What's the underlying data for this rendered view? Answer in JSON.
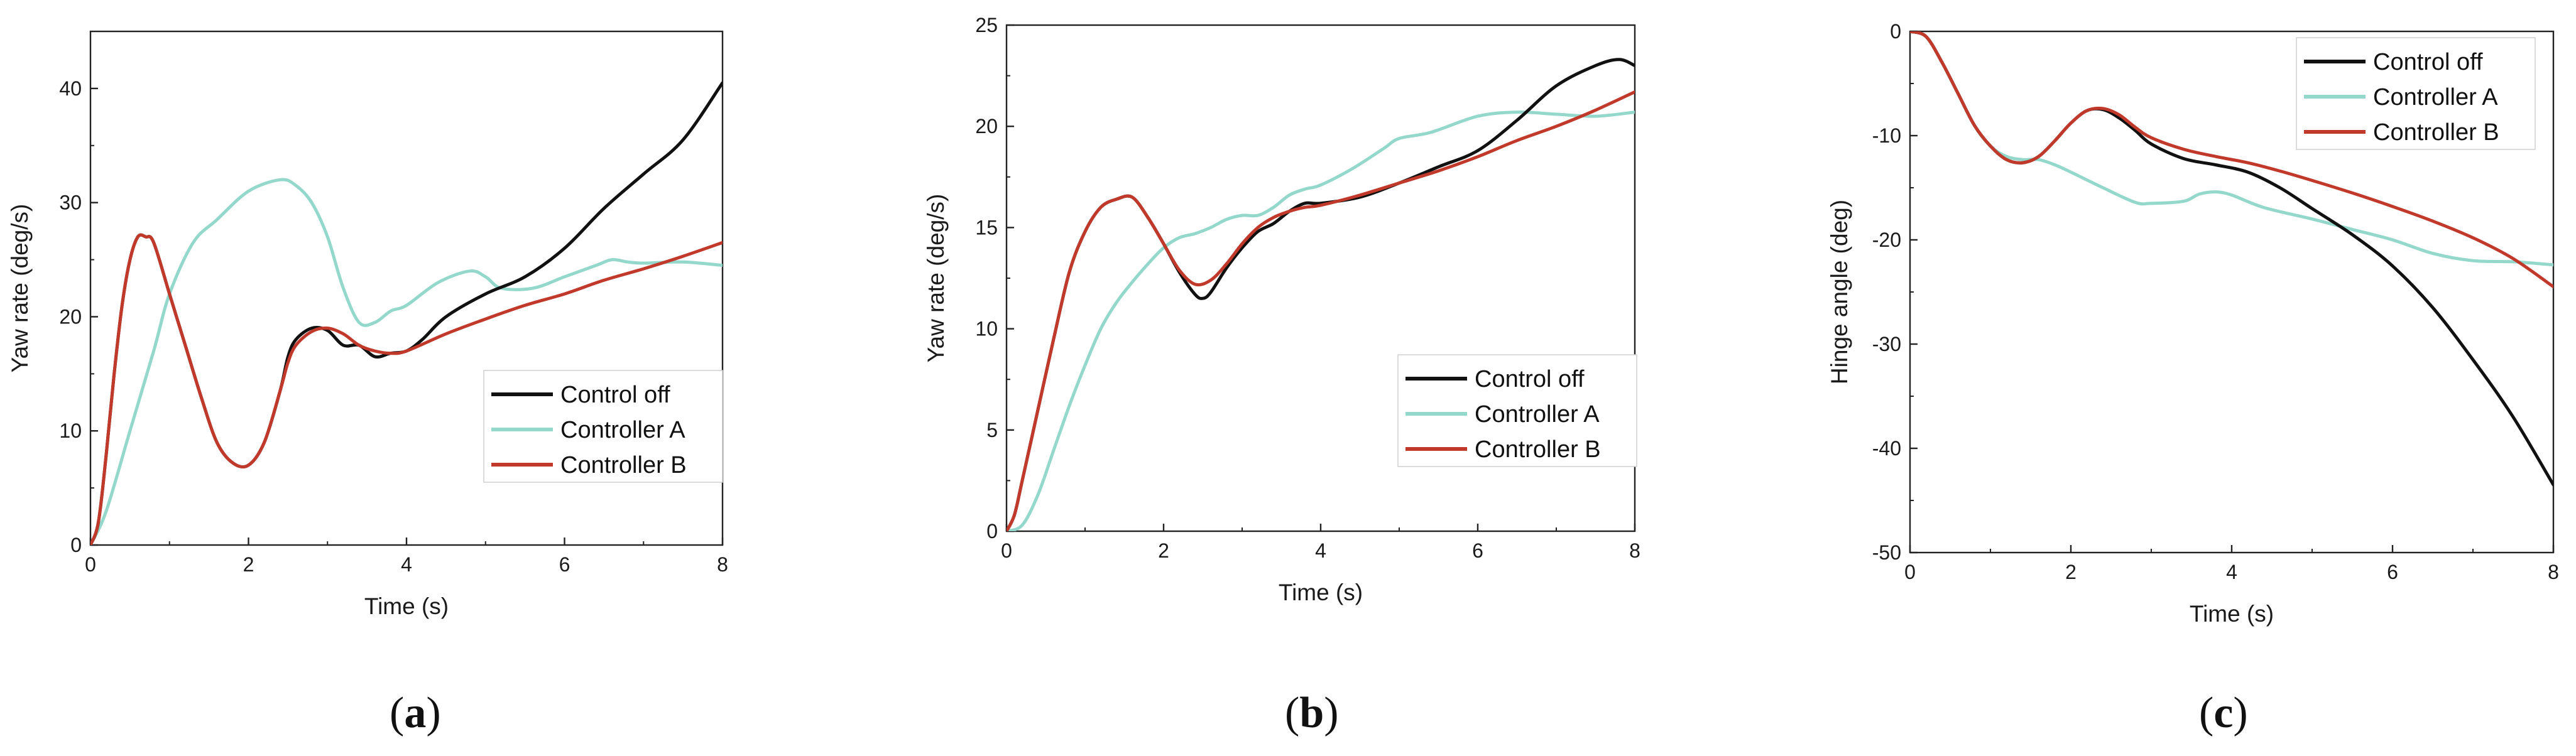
{
  "colors": {
    "control_off": "#111111",
    "controller_a": "#93d8cb",
    "controller_b": "#c0392b"
  },
  "chart_data": [
    {
      "type": "line",
      "panel_label": "a",
      "title": "",
      "xlabel": "Time (s)",
      "ylabel": "Yaw rate (deg/s)",
      "xlim": [
        0,
        8
      ],
      "ylim": [
        0,
        45
      ],
      "xticks": [
        0,
        2,
        4,
        6,
        8
      ],
      "yticks": [
        0,
        10,
        20,
        30,
        40
      ],
      "legend": {
        "position": "lower-right",
        "entries": [
          "Control off",
          "Controller A",
          "Controller B"
        ]
      },
      "series": [
        {
          "name": "Control off",
          "x": [
            0,
            0.1,
            0.2,
            0.3,
            0.4,
            0.5,
            0.6,
            0.7,
            0.8,
            1.0,
            1.2,
            1.4,
            1.6,
            1.8,
            2.0,
            2.2,
            2.4,
            2.5,
            2.6,
            2.8,
            3.0,
            3.2,
            3.4,
            3.6,
            3.8,
            4.0,
            4.2,
            4.5,
            5.0,
            5.5,
            6.0,
            6.5,
            7.0,
            7.5,
            8.0
          ],
          "y": [
            0,
            2,
            8,
            15,
            21,
            25,
            27,
            27,
            26.5,
            22,
            17.5,
            13,
            9,
            7.2,
            7,
            9,
            13.5,
            16.5,
            18,
            19,
            18.8,
            17.5,
            17.5,
            16.5,
            16.8,
            17,
            18,
            20,
            22,
            23.5,
            26,
            29.5,
            32.5,
            35.5,
            40.5
          ]
        },
        {
          "name": "Controller A",
          "x": [
            0,
            0.2,
            0.5,
            0.8,
            1.0,
            1.3,
            1.6,
            2.0,
            2.4,
            2.6,
            2.8,
            3.0,
            3.2,
            3.4,
            3.6,
            3.8,
            4.0,
            4.4,
            4.8,
            5.0,
            5.2,
            5.6,
            6.0,
            6.4,
            6.6,
            6.8,
            7.0,
            7.5,
            8.0
          ],
          "y": [
            0,
            3,
            10,
            17,
            22,
            26.5,
            28.5,
            31,
            32,
            31.5,
            30,
            27,
            22.5,
            19.5,
            19.5,
            20.5,
            21,
            23,
            24,
            23.5,
            22.5,
            22.5,
            23.5,
            24.5,
            25,
            24.8,
            24.7,
            24.8,
            24.5
          ]
        },
        {
          "name": "Controller B",
          "x": [
            0,
            0.1,
            0.2,
            0.3,
            0.4,
            0.5,
            0.6,
            0.7,
            0.8,
            1.0,
            1.2,
            1.4,
            1.6,
            1.8,
            2.0,
            2.2,
            2.4,
            2.5,
            2.6,
            2.8,
            3.0,
            3.2,
            3.4,
            3.6,
            3.8,
            4.0,
            4.5,
            5.0,
            5.5,
            6.0,
            6.5,
            7.0,
            7.5,
            8.0
          ],
          "y": [
            0,
            2,
            8,
            15,
            21,
            25,
            27,
            27,
            26.5,
            22,
            17.5,
            13,
            9,
            7.2,
            7,
            9,
            13.5,
            16,
            17.5,
            18.7,
            19,
            18.5,
            17.5,
            17,
            16.8,
            17,
            18.5,
            19.8,
            21,
            22,
            23.2,
            24.2,
            25.3,
            26.5
          ]
        }
      ]
    },
    {
      "type": "line",
      "panel_label": "b",
      "title": "",
      "xlabel": "Time (s)",
      "ylabel": "Yaw rate (deg/s)",
      "xlim": [
        0,
        8
      ],
      "ylim": [
        0,
        25
      ],
      "xticks": [
        0,
        2,
        4,
        6,
        8
      ],
      "yticks": [
        0,
        5,
        10,
        15,
        20,
        25
      ],
      "legend": {
        "position": "lower-right",
        "entries": [
          "Control off",
          "Controller A",
          "Controller B"
        ]
      },
      "series": [
        {
          "name": "Control off",
          "x": [
            0,
            0.1,
            0.2,
            0.4,
            0.6,
            0.8,
            1.0,
            1.2,
            1.4,
            1.6,
            1.8,
            2.0,
            2.2,
            2.4,
            2.5,
            2.6,
            2.8,
            3.0,
            3.2,
            3.4,
            3.6,
            3.8,
            4.0,
            4.5,
            5.0,
            5.5,
            6.0,
            6.5,
            7.0,
            7.5,
            7.8,
            8.0
          ],
          "y": [
            0,
            0.8,
            2.5,
            6,
            9.5,
            12.8,
            14.8,
            16,
            16.4,
            16.5,
            15.5,
            14.2,
            12.8,
            11.7,
            11.5,
            11.8,
            13,
            14,
            14.8,
            15.2,
            15.8,
            16.2,
            16.2,
            16.5,
            17.2,
            18,
            18.8,
            20.3,
            22,
            23,
            23.3,
            23
          ]
        },
        {
          "name": "Controller A",
          "x": [
            0,
            0.2,
            0.4,
            0.6,
            0.8,
            1.0,
            1.2,
            1.4,
            1.6,
            1.8,
            2.0,
            2.2,
            2.4,
            2.6,
            2.8,
            3.0,
            3.2,
            3.4,
            3.6,
            3.8,
            4.0,
            4.4,
            4.8,
            5.0,
            5.4,
            6.0,
            6.5,
            7.0,
            7.5,
            8.0
          ],
          "y": [
            0,
            0.3,
            1.8,
            4,
            6.2,
            8.2,
            10,
            11.3,
            12.3,
            13.2,
            14,
            14.5,
            14.7,
            15,
            15.4,
            15.6,
            15.6,
            16,
            16.6,
            16.9,
            17.1,
            17.9,
            18.9,
            19.4,
            19.7,
            20.5,
            20.7,
            20.6,
            20.5,
            20.7
          ]
        },
        {
          "name": "Controller B",
          "x": [
            0,
            0.1,
            0.2,
            0.4,
            0.6,
            0.8,
            1.0,
            1.2,
            1.4,
            1.6,
            1.8,
            2.0,
            2.2,
            2.4,
            2.6,
            2.8,
            3.0,
            3.2,
            3.4,
            3.6,
            3.8,
            4.0,
            4.5,
            5.0,
            5.5,
            6.0,
            6.5,
            7.0,
            7.5,
            8.0
          ],
          "y": [
            0,
            0.8,
            2.5,
            6,
            9.5,
            12.8,
            14.8,
            16,
            16.4,
            16.5,
            15.5,
            14.2,
            12.9,
            12.2,
            12.4,
            13.2,
            14.2,
            15,
            15.5,
            15.8,
            16,
            16.1,
            16.6,
            17.2,
            17.8,
            18.5,
            19.3,
            20,
            20.8,
            21.7
          ]
        }
      ]
    },
    {
      "type": "line",
      "panel_label": "c",
      "title": "",
      "xlabel": "Time (s)",
      "ylabel": "Hinge angle (deg)",
      "xlim": [
        0,
        8
      ],
      "ylim": [
        -50,
        0
      ],
      "xticks": [
        0,
        2,
        4,
        6,
        8
      ],
      "yticks": [
        0,
        -10,
        -20,
        -30,
        -40,
        -50
      ],
      "legend": {
        "position": "top-right",
        "entries": [
          "Control off",
          "Controller A",
          "Controller B"
        ]
      },
      "series": [
        {
          "name": "Control off",
          "x": [
            0,
            0.2,
            0.4,
            0.6,
            0.8,
            1.0,
            1.2,
            1.4,
            1.6,
            1.8,
            2.0,
            2.2,
            2.4,
            2.6,
            2.8,
            3.0,
            3.4,
            3.8,
            4.2,
            4.6,
            5.0,
            5.5,
            6.0,
            6.5,
            7.0,
            7.5,
            8.0
          ],
          "y": [
            0,
            -0.5,
            -3,
            -6,
            -9,
            -11,
            -12.3,
            -12.6,
            -12,
            -10.5,
            -8.8,
            -7.6,
            -7.5,
            -8.3,
            -9.5,
            -10.8,
            -12.2,
            -12.8,
            -13.5,
            -15,
            -17,
            -19.5,
            -22.5,
            -26.5,
            -31.5,
            -37,
            -43.5
          ]
        },
        {
          "name": "Controller A",
          "x": [
            0,
            0.2,
            0.4,
            0.6,
            0.8,
            1.0,
            1.2,
            1.4,
            1.6,
            1.8,
            2.0,
            2.4,
            2.8,
            3.0,
            3.4,
            3.6,
            3.8,
            4.0,
            4.4,
            5.0,
            5.5,
            6.0,
            6.5,
            7.0,
            7.5,
            8.0
          ],
          "y": [
            0,
            -0.5,
            -3,
            -6,
            -9,
            -11,
            -12,
            -12.3,
            -12.3,
            -12.8,
            -13.5,
            -15,
            -16.4,
            -16.5,
            -16.3,
            -15.6,
            -15.4,
            -15.7,
            -16.9,
            -18,
            -19,
            -20,
            -21.3,
            -22,
            -22.1,
            -22.4
          ]
        },
        {
          "name": "Controller B",
          "x": [
            0,
            0.2,
            0.4,
            0.6,
            0.8,
            1.0,
            1.2,
            1.4,
            1.6,
            1.8,
            2.0,
            2.2,
            2.4,
            2.6,
            2.8,
            3.0,
            3.4,
            3.8,
            4.2,
            4.6,
            5.0,
            5.5,
            6.0,
            6.5,
            7.0,
            7.5,
            8.0
          ],
          "y": [
            0,
            -0.5,
            -3,
            -6,
            -9,
            -11,
            -12.3,
            -12.6,
            -12,
            -10.5,
            -8.8,
            -7.6,
            -7.4,
            -8,
            -9.2,
            -10.2,
            -11.3,
            -12,
            -12.6,
            -13.4,
            -14.3,
            -15.5,
            -16.8,
            -18.2,
            -19.8,
            -21.8,
            -24.5
          ]
        }
      ]
    }
  ]
}
